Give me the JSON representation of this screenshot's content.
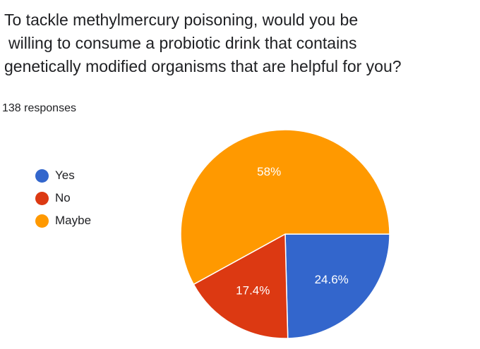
{
  "title_lines": [
    "To tackle methylmercury poisoning, would you be",
    "willing to consume a probiotic drink that contains",
    "genetically modified organisms that are helpful for you?"
  ],
  "responses_text": "138 responses",
  "chart_data": {
    "type": "pie",
    "categories": [
      "Yes",
      "No",
      "Maybe"
    ],
    "values": [
      24.6,
      17.4,
      58
    ],
    "labels": [
      "24.6%",
      "17.4%",
      "58%"
    ],
    "colors": [
      "#3366cc",
      "#dc3912",
      "#ff9900"
    ],
    "legend_position": "left"
  }
}
